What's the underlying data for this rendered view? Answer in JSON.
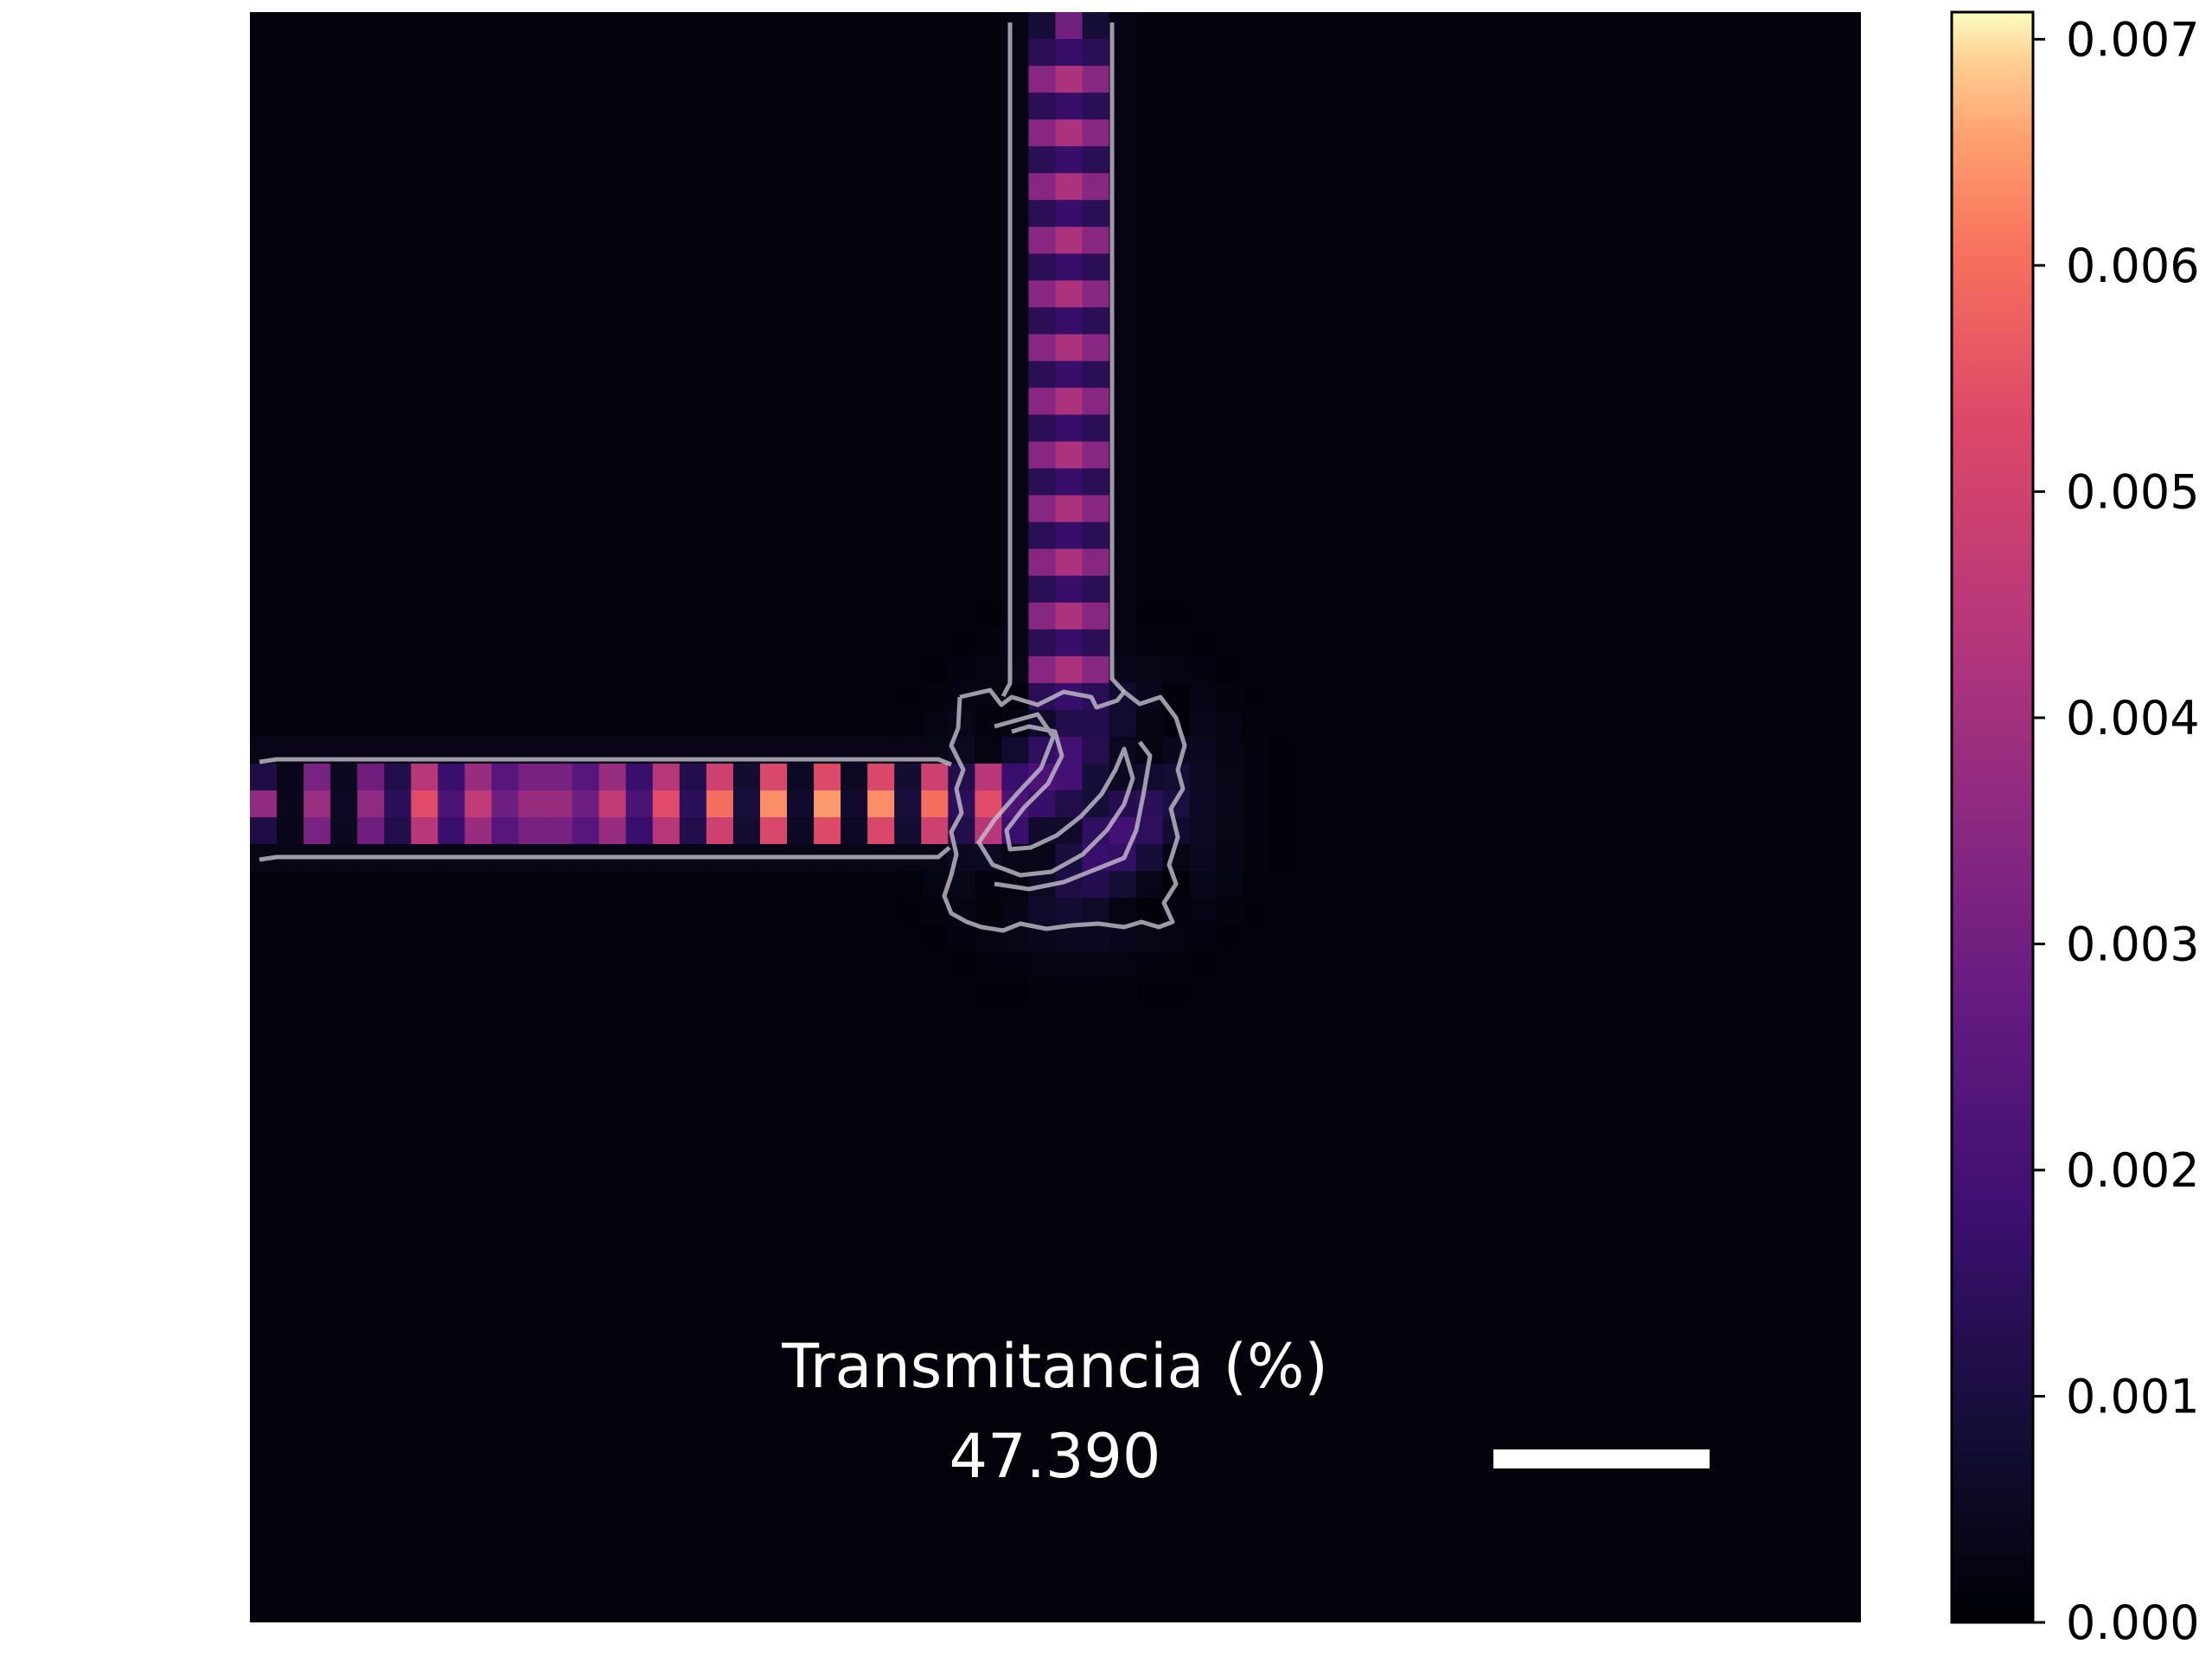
{
  "chart_data": {
    "type": "heatmap",
    "title": "",
    "xlabel": "",
    "ylabel": "",
    "description_units": "field intensity (colorbar units)",
    "colormap": "magma",
    "colorbar": {
      "min": 0.0,
      "max": 0.00712,
      "ticks": [
        0.0,
        0.001,
        0.002,
        0.003,
        0.004,
        0.005,
        0.006,
        0.007
      ],
      "tick_labels": [
        "0.000",
        "0.001",
        "0.002",
        "0.003",
        "0.004",
        "0.005",
        "0.006",
        "0.007"
      ]
    },
    "annotation": {
      "label": "Transmitancia (%)",
      "value": "47.390"
    },
    "field": {
      "background": 0.0001,
      "horizontal_waveguide_peak": 0.0065,
      "vertical_waveguide_peak": 0.0042,
      "junction_peak": 0.005,
      "horizontal_periods": 13,
      "vertical_periods": 15
    },
    "grid": false,
    "legend": "none",
    "scale_bar": true
  }
}
